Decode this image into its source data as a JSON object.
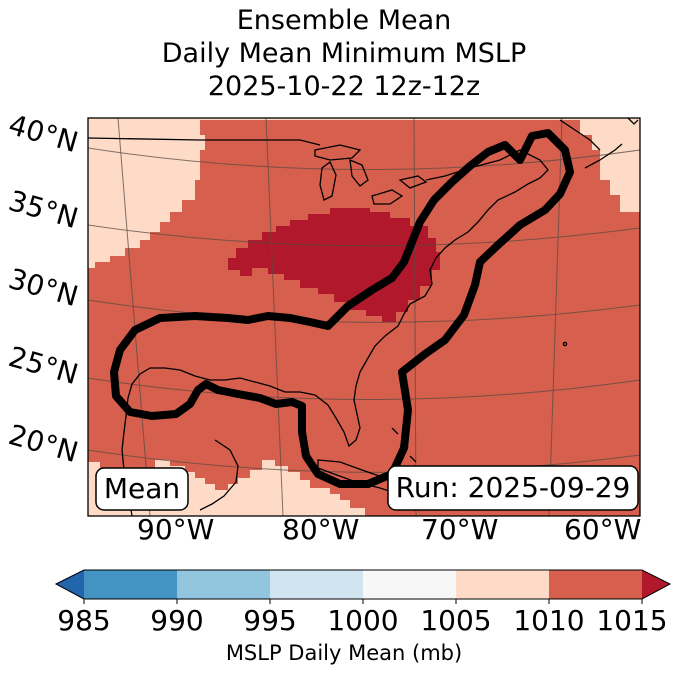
{
  "title": {
    "line1": "Ensemble Mean",
    "line2": "Daily Mean Minimum MSLP",
    "line3": "2025-10-22 12z-12z"
  },
  "map": {
    "lat_labels": [
      "40°N",
      "35°N",
      "30°N",
      "25°N",
      "20°N"
    ],
    "lon_labels": [
      "90°W",
      "80°W",
      "70°W",
      "60°W"
    ],
    "box_left": "Mean",
    "box_right": "Run: 2025-09-29",
    "fill_colors": {
      "1005-1010": "#fddbc7",
      "1010-1015": "#d6604d",
      ">1015": "#b2182b"
    },
    "contour_color": "#000000",
    "gridline_color": "#5a4a44"
  },
  "colorbar": {
    "ticks": [
      "985",
      "990",
      "995",
      "1000",
      "1005",
      "1010",
      "1015"
    ],
    "label": "MSLP Daily Mean (mb)",
    "colors": [
      "#2166ac",
      "#4393c3",
      "#92c5de",
      "#d1e5f0",
      "#f7f7f7",
      "#fddbc7",
      "#d6604d",
      "#b2182b"
    ]
  }
}
